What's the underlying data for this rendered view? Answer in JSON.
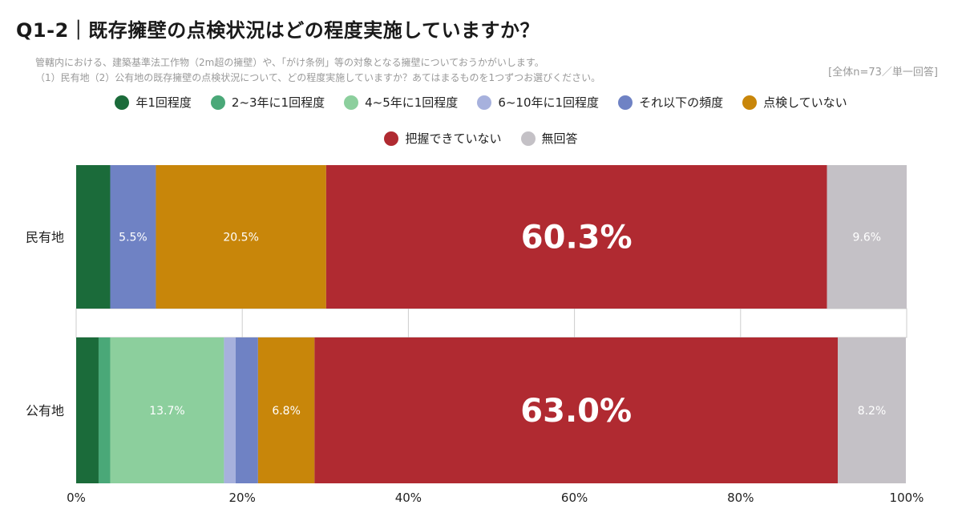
{
  "header": {
    "title": "Q1-2｜既存擁壁の点検状況はどの程度実施していますか？",
    "note_line1": "管轄内における、建築基準法工作物（2m超の擁壁）や、「がけ条例」等の対象となる擁壁についておうかがいします。",
    "note_line2": "（1）民有地（2）公有地の既存擁壁の点検状況について、どの程度実施していますか？あてはまるものを1つずつお選びください。",
    "basis": "[全体n=73／単一回答]"
  },
  "chart_data": {
    "type": "bar",
    "orientation": "horizontal-stacked-100",
    "categories": [
      "民有地",
      "公有地"
    ],
    "series": [
      {
        "name": "年1回程度",
        "color": "#1b6b3a",
        "values": [
          4.1,
          2.7
        ]
      },
      {
        "name": "2~3年に1回程度",
        "color": "#4aa878",
        "values": [
          0.0,
          1.4
        ]
      },
      {
        "name": "4~5年に1回程度",
        "color": "#8ccf9d",
        "values": [
          0.0,
          13.7
        ]
      },
      {
        "name": "6~10年に1回程度",
        "color": "#a7b1dd",
        "values": [
          0.0,
          1.4
        ]
      },
      {
        "name": "それ以下の頻度",
        "color": "#6f82c4",
        "values": [
          5.5,
          2.7
        ]
      },
      {
        "name": "点検していない",
        "color": "#c8860a",
        "values": [
          20.5,
          6.8
        ]
      },
      {
        "name": "把握できていない",
        "color": "#b02a31",
        "values": [
          60.3,
          63.0
        ]
      },
      {
        "name": "無回答",
        "color": "#c4c1c6",
        "values": [
          9.6,
          8.2
        ]
      }
    ],
    "data_labels": [
      [
        null,
        null,
        null,
        null,
        "5.5%",
        "20.5%",
        "60.3%",
        "9.6%"
      ],
      [
        null,
        null,
        "13.7%",
        null,
        null,
        "6.8%",
        "63.0%",
        "8.2%"
      ]
    ],
    "x_ticks": [
      "0%",
      "20%",
      "40%",
      "60%",
      "80%",
      "100%"
    ],
    "xlim": [
      0,
      100
    ],
    "legend_placement": "top-center"
  }
}
